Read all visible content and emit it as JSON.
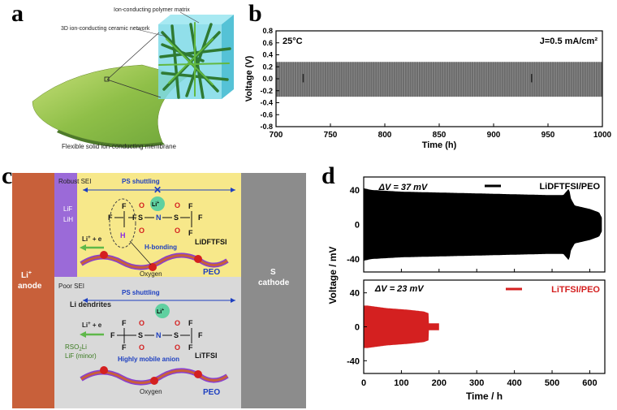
{
  "panels": {
    "a": "a",
    "b": "b",
    "c": "c",
    "d": "d"
  },
  "panel_a": {
    "label_polymer": "Ion-conducting polymer matrix",
    "label_ceramic": "3D ion-conducting ceramic network",
    "caption": "Flexible solid ion-conducting membrane"
  },
  "panel_c": {
    "anode": [
      "Li",
      "anode"
    ],
    "anode_sup": "+",
    "cathode": [
      "S",
      "cathode"
    ],
    "robust_sei": "Robust SEI",
    "lif": "LiF",
    "lih": "LiH",
    "ps_shuttling": "PS shuttling",
    "li_plus": "Li",
    "li_plus_sup": "+",
    "li_e": "Li",
    "li_e_rest": " + e",
    "h_bonding": "H-bonding",
    "salt_top": "LiDFTFSI",
    "oxygen": "Oxygen",
    "peo": "PEO",
    "poor_sei": "Poor SEI",
    "dendrites": "Li dendrites",
    "rso2li": "RSO",
    "rso2li_sub": "2",
    "rso2li_end": "Li",
    "lif_minor": "LiF (minor)",
    "mobile_anion": "Highly mobile anion",
    "salt_bottom": "LiTFSI",
    "atoms": {
      "F": "F",
      "O": "O",
      "S": "S",
      "N": "N",
      "H": "H"
    }
  },
  "chart_data": [
    {
      "type": "line",
      "panel": "b",
      "description_series": "Li symmetric cell voltage oscillation",
      "x": [
        700,
        1000
      ],
      "upper": 0.28,
      "lower": -0.3,
      "xlim": [
        700,
        1000
      ],
      "ylim": [
        -0.8,
        0.8
      ],
      "xticks": [
        "700",
        "750",
        "800",
        "850",
        "900",
        "950",
        "1000"
      ],
      "yticks": [
        "-0.8",
        "-0.6",
        "-0.4",
        "-0.2",
        "0.0",
        "0.2",
        "0.4",
        "0.6",
        "0.8"
      ],
      "xlabel": "Time (h)",
      "ylabel": "Voltage (V)",
      "annotation_temp": "25°C",
      "annotation_current": "J=0.5 mA/cm²",
      "color": "#808080"
    },
    {
      "type": "area",
      "panel": "d",
      "xlabel": "Time / h",
      "ylabel": "Voltage / mV",
      "xlim": [
        0,
        640
      ],
      "xticks": [
        "0",
        "100",
        "200",
        "300",
        "400",
        "500",
        "600"
      ],
      "top": {
        "name": "LiDFTFSI/PEO",
        "color": "#000000",
        "yticks": [
          "-40",
          "0",
          "40"
        ],
        "ylim": [
          -55,
          55
        ],
        "annotation": "ΔV = 37 mV",
        "envelope_x": [
          0,
          20,
          100,
          200,
          300,
          400,
          500,
          530,
          545,
          550,
          560,
          600,
          625,
          632
        ],
        "envelope_y": [
          42,
          40,
          38,
          37,
          36,
          35,
          34,
          34,
          42,
          30,
          22,
          18,
          14,
          8
        ]
      },
      "bottom": {
        "name": "LiTFSI/PEO",
        "color": "#d42020",
        "yticks": [
          "-40",
          "0",
          "40"
        ],
        "ylim": [
          -55,
          55
        ],
        "annotation": "ΔV = 23 mV",
        "envelope_x": [
          0,
          10,
          60,
          120,
          160,
          172,
          173,
          200
        ],
        "envelope_y": [
          25,
          25,
          22,
          20,
          18,
          16,
          4,
          4
        ]
      }
    }
  ]
}
